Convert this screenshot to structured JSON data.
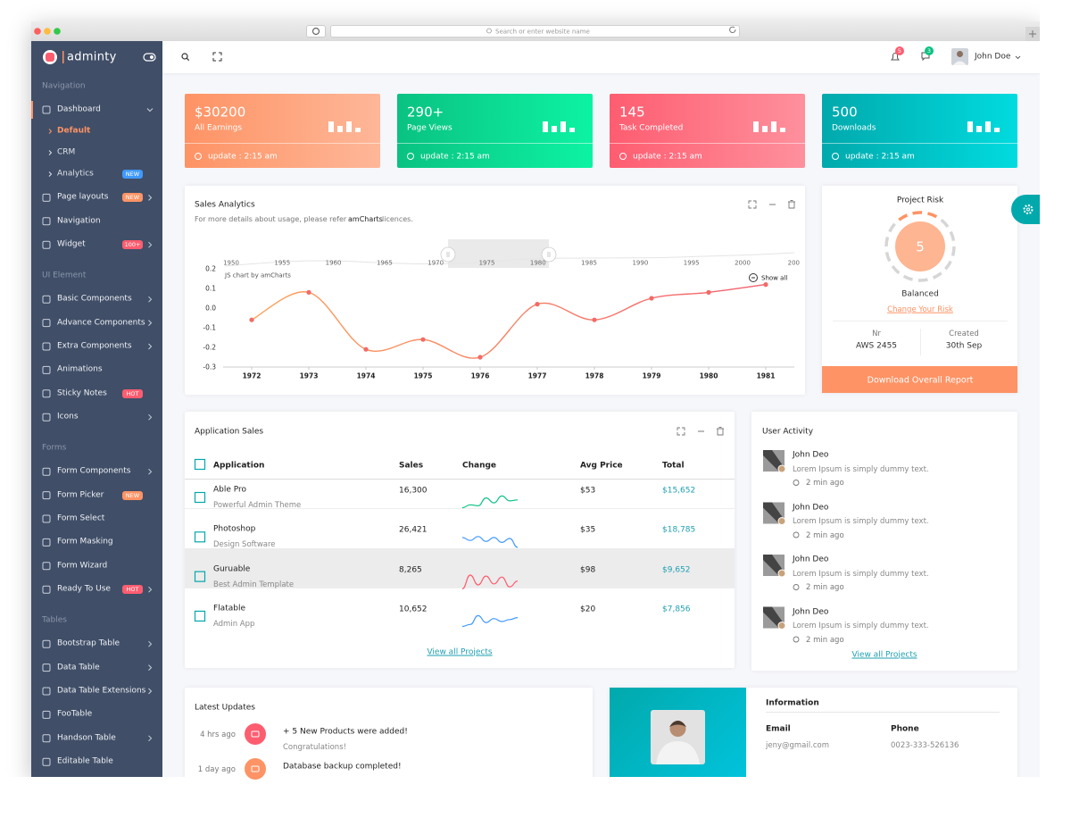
{
  "browser": {
    "address_placeholder": "Search or enter website name"
  },
  "header": {
    "logo": "adminty",
    "notifications": "5",
    "messages": "3",
    "user": "John Doe"
  },
  "sidebar": {
    "sections": [
      {
        "title": "Navigation",
        "items": [
          {
            "label": "Dashboard",
            "submenu": true,
            "sub": [
              {
                "label": "Default",
                "active": true
              },
              {
                "label": "CRM"
              },
              {
                "label": "Analytics",
                "badge": "NEW",
                "badge_color": "#4099ff"
              }
            ]
          },
          {
            "label": "Page layouts",
            "badge": "NEW",
            "badge_color": "#fe9365",
            "submenu": true
          },
          {
            "label": "Navigation"
          },
          {
            "label": "Widget",
            "badge": "100+",
            "badge_color": "#fe5d70",
            "submenu": true
          }
        ]
      },
      {
        "title": "UI Element",
        "items": [
          {
            "label": "Basic Components",
            "submenu": true
          },
          {
            "label": "Advance Components",
            "submenu": true
          },
          {
            "label": "Extra Components",
            "submenu": true
          },
          {
            "label": "Animations"
          },
          {
            "label": "Sticky Notes",
            "badge": "HOT",
            "badge_color": "#fe5d70"
          },
          {
            "label": "Icons",
            "submenu": true
          }
        ]
      },
      {
        "title": "Forms",
        "items": [
          {
            "label": "Form Components",
            "submenu": true
          },
          {
            "label": "Form Picker",
            "badge": "NEW",
            "badge_color": "#fe9365"
          },
          {
            "label": "Form Select"
          },
          {
            "label": "Form Masking"
          },
          {
            "label": "Form Wizard"
          },
          {
            "label": "Ready To Use",
            "badge": "HOT",
            "badge_color": "#fe5d70",
            "submenu": true
          }
        ]
      },
      {
        "title": "Tables",
        "items": [
          {
            "label": "Bootstrap Table",
            "submenu": true
          },
          {
            "label": "Data Table",
            "submenu": true
          },
          {
            "label": "Data Table Extensions",
            "submenu": true
          },
          {
            "label": "FooTable"
          },
          {
            "label": "Handson Table",
            "submenu": true
          },
          {
            "label": "Editable Table"
          }
        ]
      }
    ]
  },
  "stat_cards": [
    {
      "value": "$30200",
      "label": "All Earnings",
      "update": "update : 2:15 am",
      "colors": [
        "#fe9365",
        "#feb798"
      ]
    },
    {
      "value": "290+",
      "label": "Page Views",
      "update": "update : 2:15 am",
      "colors": [
        "#0ac282",
        "#0df3a3"
      ]
    },
    {
      "value": "145",
      "label": "Task Completed",
      "update": "update : 2:15 am",
      "colors": [
        "#fe5d70",
        "#fe909d"
      ]
    },
    {
      "value": "500",
      "label": "Downloads",
      "update": "update : 2:15 am",
      "colors": [
        "#01a9ac",
        "#01dbdf"
      ]
    }
  ],
  "sales_analytics": {
    "note_prefix": "For more details about usage, please refer",
    "note_link": "amCharts",
    "note_suffix": "licences.",
    "credit": "JS chart by amCharts",
    "show_all": "Show all",
    "scrollbar_labels": [
      "1950",
      "1955",
      "1960",
      "1965",
      "1970",
      "1975",
      "1980",
      "1985",
      "1990",
      "1995",
      "2000",
      "200"
    ]
  },
  "chart_data": {
    "type": "line",
    "title": "Sales Analytics",
    "x": [
      1972,
      1973,
      1974,
      1975,
      1976,
      1977,
      1978,
      1979,
      1980,
      1981
    ],
    "series": [
      {
        "color": "#f36a66",
        "values": [
          -0.06,
          0.08,
          -0.21,
          -0.16,
          -0.25,
          0.02,
          -0.06,
          0.05,
          0.08,
          0.12
        ]
      }
    ],
    "xlim": [
      1971.5,
      1981.5
    ],
    "xticks": [
      1972,
      1973,
      1974,
      1975,
      1976,
      1977,
      1978,
      1979,
      1980,
      1981
    ],
    "ylim": [
      -0.3,
      0.2
    ],
    "yticks": [
      0.2,
      0.1,
      {
        "value": 0,
        "label": "0.0"
      },
      -0.1,
      -0.2,
      -0.3
    ],
    "grid": false
  },
  "project_risk": {
    "title": "Project Risk",
    "score": 5,
    "status": "Balanced",
    "link": "Change Your Risk",
    "nr_label": "Nr",
    "nr_value": "AWS 2455",
    "created_label": "Created",
    "created_value": "30th Sep",
    "button": "Download Overall Report"
  },
  "app_sales": {
    "title": "Application Sales",
    "columns": [
      "Application",
      "Sales",
      "Change",
      "Avg Price",
      "Total"
    ],
    "rows": [
      {
        "name": "Able Pro",
        "desc": "Powerful Admin Theme",
        "sales": "16,300",
        "trend": [
          0.2,
          0.35,
          0.3,
          0.7,
          0.45,
          0.8,
          0.55,
          0.6
        ],
        "trend_color": "#0ac282",
        "price": "$53",
        "total": "$15,652"
      },
      {
        "name": "Photoshop",
        "desc": "Design Software",
        "sales": "26,421",
        "trend": [
          0.7,
          0.55,
          0.75,
          0.5,
          0.7,
          0.45,
          0.65,
          0.2
        ],
        "trend_color": "#4099ff",
        "price": "$35",
        "total": "$18,785"
      },
      {
        "name": "Guruable",
        "desc": "Best Admin Template",
        "sales": "8,265",
        "trend": [
          0.1,
          0.8,
          0.3,
          0.75,
          0.35,
          0.7,
          0.2,
          0.5
        ],
        "trend_color": "#fe5d70",
        "price": "$98",
        "total": "$9,652"
      },
      {
        "name": "Flatable",
        "desc": "Admin App",
        "sales": "10,652",
        "trend": [
          0.2,
          0.3,
          0.75,
          0.4,
          0.6,
          0.45,
          0.55,
          0.65
        ],
        "trend_color": "#4099ff",
        "price": "$20",
        "total": "$7,856"
      }
    ],
    "link": "View all Projects"
  },
  "user_activity": {
    "title": "User Activity",
    "items": [
      {
        "name": "John Deo",
        "text": "Lorem Ipsum is simply dummy text.",
        "time": "2 min ago"
      },
      {
        "name": "John Deo",
        "text": "Lorem Ipsum is simply dummy text.",
        "time": "2 min ago"
      },
      {
        "name": "John Deo",
        "text": "Lorem Ipsum is simply dummy text.",
        "time": "2 min ago"
      },
      {
        "name": "John Deo",
        "text": "Lorem Ipsum is simply dummy text.",
        "time": "2 min ago"
      }
    ],
    "link": "View all Projects"
  },
  "latest_updates": {
    "title": "Latest Updates",
    "items": [
      {
        "time": "4 hrs ago",
        "text": "+ 5 New Products were added!",
        "sub": "Congratulations!",
        "color": "#fe5d70"
      },
      {
        "time": "1 day ago",
        "text": "Database backup completed!",
        "color": "#fe9365"
      }
    ]
  },
  "information": {
    "title": "Information",
    "email_label": "Email",
    "email": "jeny@gmail.com",
    "phone_label": "Phone",
    "phone": "0023-333-526136"
  }
}
